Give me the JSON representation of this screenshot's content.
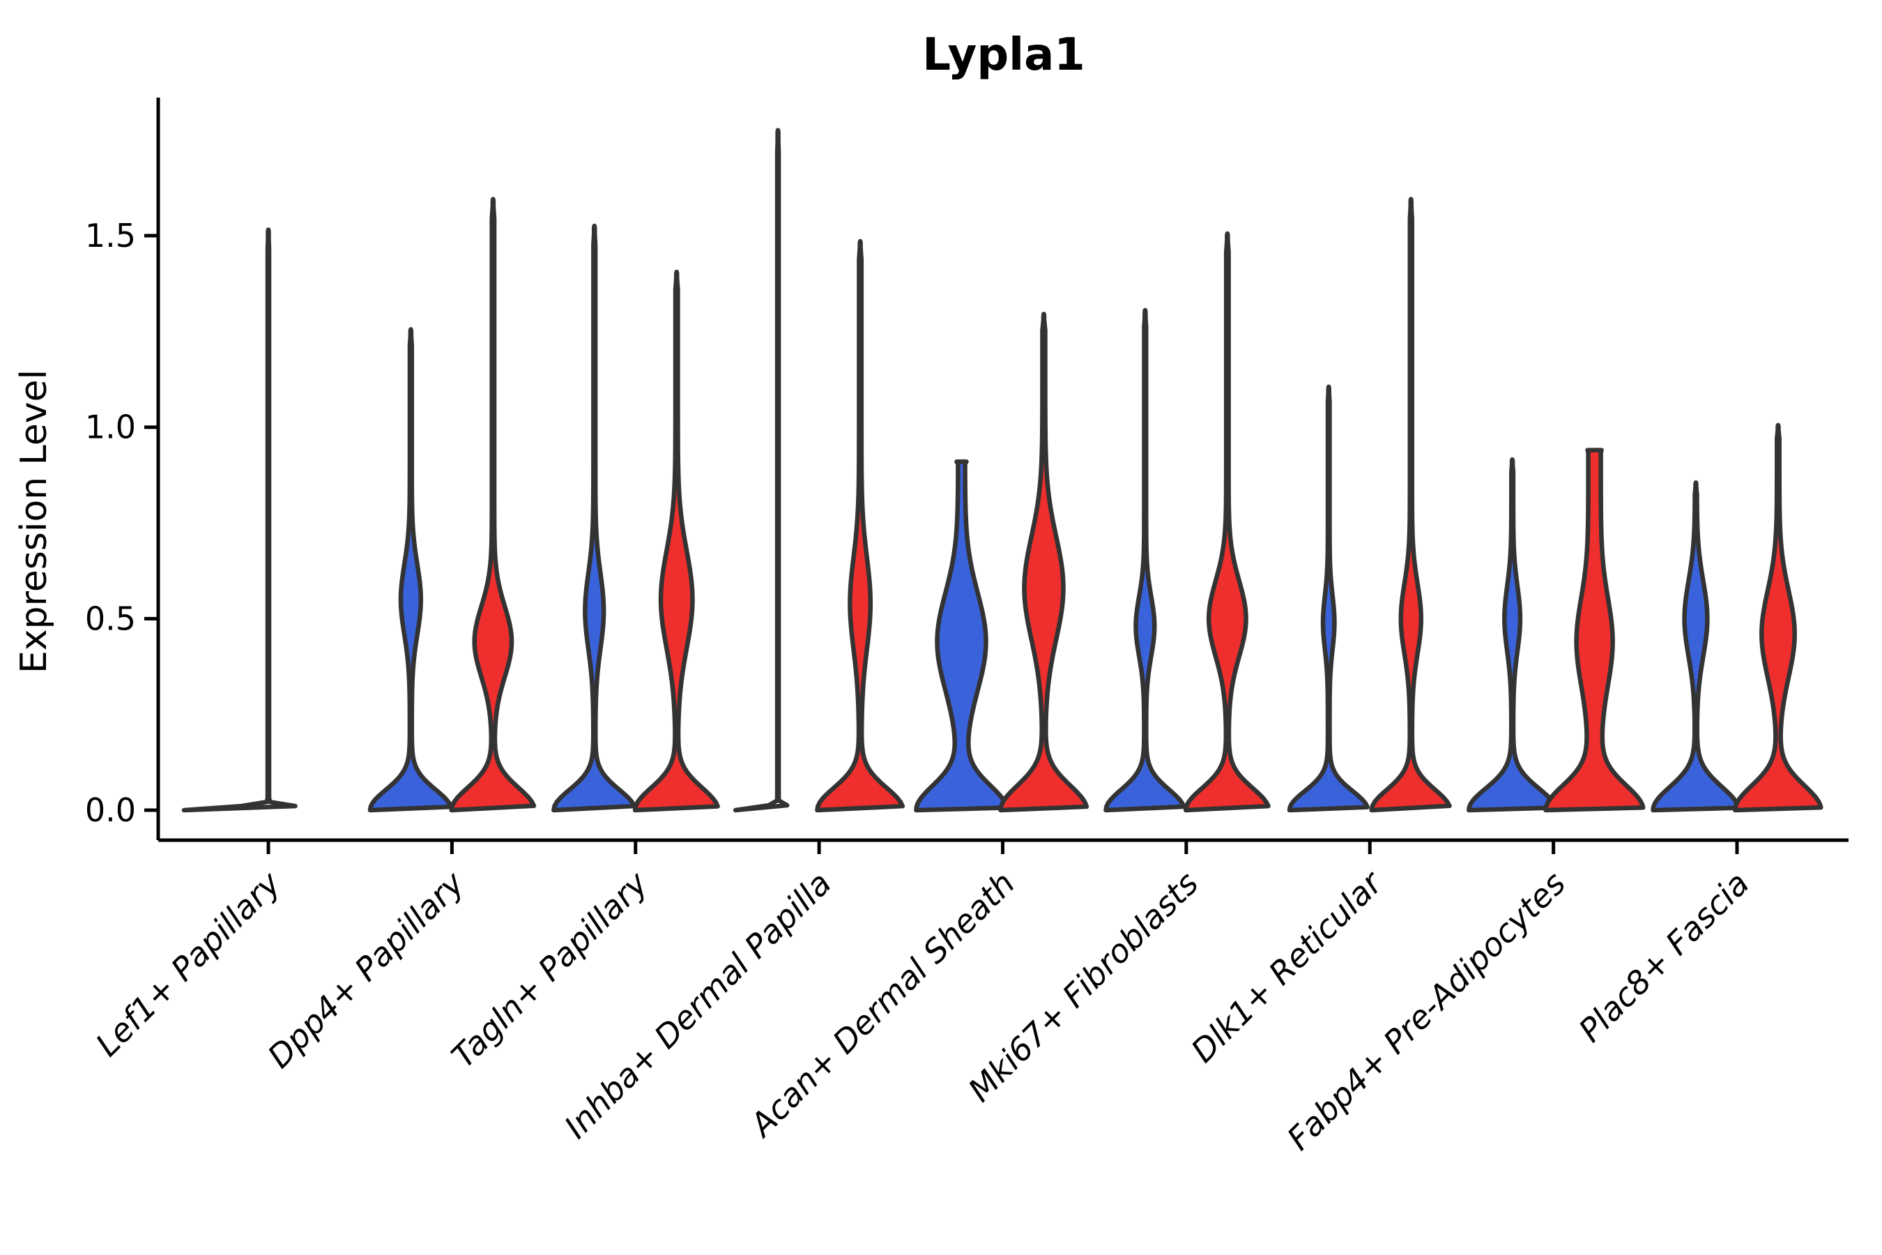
{
  "page": {
    "background": "#ffffff"
  },
  "chart_data": {
    "type": "violin",
    "title": "Lypla1",
    "xlabel": "",
    "ylabel": "Expression Level",
    "yticks": [
      "0.0",
      "0.5",
      "1.0",
      "1.5"
    ],
    "ytick_values": [
      0.0,
      0.5,
      1.0,
      1.5
    ],
    "ylim": [
      -0.08,
      1.86
    ],
    "grid": false,
    "legend": "none",
    "colors": {
      "blue_split": "#3A63DB",
      "red_split": "#EE2F2D",
      "outline": "#333333",
      "axis": "#000000",
      "text": "#000000"
    },
    "categories": [
      "Lef1+ Papillary",
      "Dpp4+ Papillary",
      "Tagln+ Papillary",
      "Inhba+ Dermal Papilla",
      "Acan+ Dermal Sheath",
      "Mki67+ Fibroblasts",
      "Dlk1+ Reticular",
      "Fabp4+ Pre-Adipocytes",
      "Plac8+ Fascia"
    ],
    "violins": [
      {
        "category_index": 0,
        "category": "Lef1+ Papillary",
        "split": "single",
        "fill": "none",
        "max_expression": 1.51,
        "flat": true,
        "mode_nonzero": null,
        "profile": {
          "base_hw": 120,
          "base_sigma": 0.01,
          "bulge_center": 0,
          "bulge_sigma": 1,
          "bulge_hw": 0,
          "tail_hw": 1.0,
          "cap": "point",
          "cap_hw": 0
        }
      },
      {
        "category_index": 1,
        "category": "Dpp4+ Papillary",
        "split": "blue",
        "fill": "#3A63DB",
        "max_expression": 1.25,
        "flat": false,
        "mode_nonzero": 0.55,
        "profile": {
          "base_hw": 57,
          "base_sigma": 0.075,
          "bulge_center": 0.55,
          "bulge_sigma": 0.13,
          "bulge_hw": 13,
          "tail_hw": 1.4,
          "cap": "point",
          "cap_hw": 0
        }
      },
      {
        "category_index": 1,
        "category": "Dpp4+ Papillary",
        "split": "red",
        "fill": "#EE2F2D",
        "max_expression": 1.59,
        "flat": false,
        "mode_nonzero": 0.44,
        "profile": {
          "base_hw": 58,
          "base_sigma": 0.082,
          "bulge_center": 0.44,
          "bulge_sigma": 0.13,
          "bulge_hw": 25,
          "tail_hw": 1.7,
          "cap": "point",
          "cap_hw": 0
        }
      },
      {
        "category_index": 2,
        "category": "Tagln+ Papillary",
        "split": "blue",
        "fill": "#3A63DB",
        "max_expression": 1.52,
        "flat": false,
        "mode_nonzero": 0.52,
        "profile": {
          "base_hw": 57,
          "base_sigma": 0.075,
          "bulge_center": 0.52,
          "bulge_sigma": 0.14,
          "bulge_hw": 12,
          "tail_hw": 1.4,
          "cap": "point",
          "cap_hw": 0
        }
      },
      {
        "category_index": 2,
        "category": "Tagln+ Papillary",
        "split": "red",
        "fill": "#EE2F2D",
        "max_expression": 1.4,
        "flat": false,
        "mode_nonzero": 0.55,
        "profile": {
          "base_hw": 58,
          "base_sigma": 0.082,
          "bulge_center": 0.55,
          "bulge_sigma": 0.18,
          "bulge_hw": 21,
          "tail_hw": 1.7,
          "cap": "point",
          "cap_hw": 0
        }
      },
      {
        "category_index": 3,
        "category": "Inhba+ Dermal Papilla",
        "split": "blue",
        "fill": "none",
        "max_expression": 1.77,
        "flat": true,
        "mode_nonzero": null,
        "profile": {
          "base_hw": 60,
          "base_sigma": 0.01,
          "bulge_center": 0,
          "bulge_sigma": 1,
          "bulge_hw": 0,
          "tail_hw": 1.0,
          "cap": "point",
          "cap_hw": 0
        }
      },
      {
        "category_index": 3,
        "category": "Inhba+ Dermal Papilla",
        "split": "red",
        "fill": "#EE2F2D",
        "max_expression": 1.48,
        "flat": false,
        "mode_nonzero": 0.54,
        "profile": {
          "base_hw": 60,
          "base_sigma": 0.082,
          "bulge_center": 0.54,
          "bulge_sigma": 0.17,
          "bulge_hw": 13,
          "tail_hw": 1.7,
          "cap": "point",
          "cap_hw": 0
        }
      },
      {
        "category_index": 4,
        "category": "Acan+ Dermal Sheath",
        "split": "blue",
        "fill": "#3A63DB",
        "max_expression": 0.91,
        "flat": false,
        "mode_nonzero": 0.44,
        "profile": {
          "base_hw": 60,
          "base_sigma": 0.09,
          "bulge_center": 0.44,
          "bulge_sigma": 0.18,
          "bulge_hw": 30,
          "tail_hw": 5.0,
          "cap": "blunt",
          "cap_hw": 7
        }
      },
      {
        "category_index": 4,
        "category": "Acan+ Dermal Sheath",
        "split": "red",
        "fill": "#EE2F2D",
        "max_expression": 1.29,
        "flat": false,
        "mode_nonzero": 0.58,
        "profile": {
          "base_hw": 60,
          "base_sigma": 0.09,
          "bulge_center": 0.58,
          "bulge_sigma": 0.19,
          "bulge_hw": 26,
          "tail_hw": 2.0,
          "cap": "point",
          "cap_hw": 0
        }
      },
      {
        "category_index": 5,
        "category": "Mki67+ Fibroblasts",
        "split": "blue",
        "fill": "#3A63DB",
        "max_expression": 1.3,
        "flat": false,
        "mode_nonzero": 0.48,
        "profile": {
          "base_hw": 55,
          "base_sigma": 0.075,
          "bulge_center": 0.48,
          "bulge_sigma": 0.11,
          "bulge_hw": 12,
          "tail_hw": 1.4,
          "cap": "point",
          "cap_hw": 0
        }
      },
      {
        "category_index": 5,
        "category": "Mki67+ Fibroblasts",
        "split": "red",
        "fill": "#EE2F2D",
        "max_expression": 1.5,
        "flat": false,
        "mode_nonzero": 0.5,
        "profile": {
          "base_hw": 58,
          "base_sigma": 0.08,
          "bulge_center": 0.5,
          "bulge_sigma": 0.14,
          "bulge_hw": 25,
          "tail_hw": 1.7,
          "cap": "point",
          "cap_hw": 0
        }
      },
      {
        "category_index": 6,
        "category": "Dlk1+ Reticular",
        "split": "blue",
        "fill": "#3A63DB",
        "max_expression": 1.1,
        "flat": false,
        "mode_nonzero": 0.49,
        "profile": {
          "base_hw": 55,
          "base_sigma": 0.07,
          "bulge_center": 0.49,
          "bulge_sigma": 0.1,
          "bulge_hw": 7,
          "tail_hw": 1.2,
          "cap": "point",
          "cap_hw": 0
        }
      },
      {
        "category_index": 6,
        "category": "Dlk1+ Reticular",
        "split": "red",
        "fill": "#EE2F2D",
        "max_expression": 1.59,
        "flat": false,
        "mode_nonzero": 0.5,
        "profile": {
          "base_hw": 55,
          "base_sigma": 0.075,
          "bulge_center": 0.5,
          "bulge_sigma": 0.13,
          "bulge_hw": 13,
          "tail_hw": 1.5,
          "cap": "point",
          "cap_hw": 0
        }
      },
      {
        "category_index": 7,
        "category": "Fabp4+ Pre-Adipocytes",
        "split": "blue",
        "fill": "#3A63DB",
        "max_expression": 0.91,
        "flat": false,
        "mode_nonzero": 0.5,
        "profile": {
          "base_hw": 61,
          "base_sigma": 0.08,
          "bulge_center": 0.5,
          "bulge_sigma": 0.12,
          "bulge_hw": 10,
          "tail_hw": 1.3,
          "cap": "point",
          "cap_hw": 0
        }
      },
      {
        "category_index": 7,
        "category": "Fabp4+ Pre-Adipocytes",
        "split": "red",
        "fill": "#EE2F2D",
        "max_expression": 0.94,
        "flat": false,
        "mode_nonzero": 0.44,
        "profile": {
          "base_hw": 61,
          "base_sigma": 0.09,
          "bulge_center": 0.44,
          "bulge_sigma": 0.16,
          "bulge_hw": 17,
          "tail_hw": 9.0,
          "cap": "blunt",
          "cap_hw": 10
        }
      },
      {
        "category_index": 8,
        "category": "Plac8+ Fascia",
        "split": "blue",
        "fill": "#3A63DB",
        "max_expression": 0.85,
        "flat": false,
        "mode_nonzero": 0.5,
        "profile": {
          "base_hw": 60,
          "base_sigma": 0.085,
          "bulge_center": 0.5,
          "bulge_sigma": 0.14,
          "bulge_hw": 15,
          "tail_hw": 1.4,
          "cap": "point",
          "cap_hw": 0
        }
      },
      {
        "category_index": 8,
        "category": "Plac8+ Fascia",
        "split": "red",
        "fill": "#EE2F2D",
        "max_expression": 1.0,
        "flat": false,
        "mode_nonzero": 0.46,
        "profile": {
          "base_hw": 60,
          "base_sigma": 0.09,
          "bulge_center": 0.46,
          "bulge_sigma": 0.16,
          "bulge_hw": 22,
          "tail_hw": 1.7,
          "cap": "point",
          "cap_hw": 0
        }
      }
    ]
  }
}
